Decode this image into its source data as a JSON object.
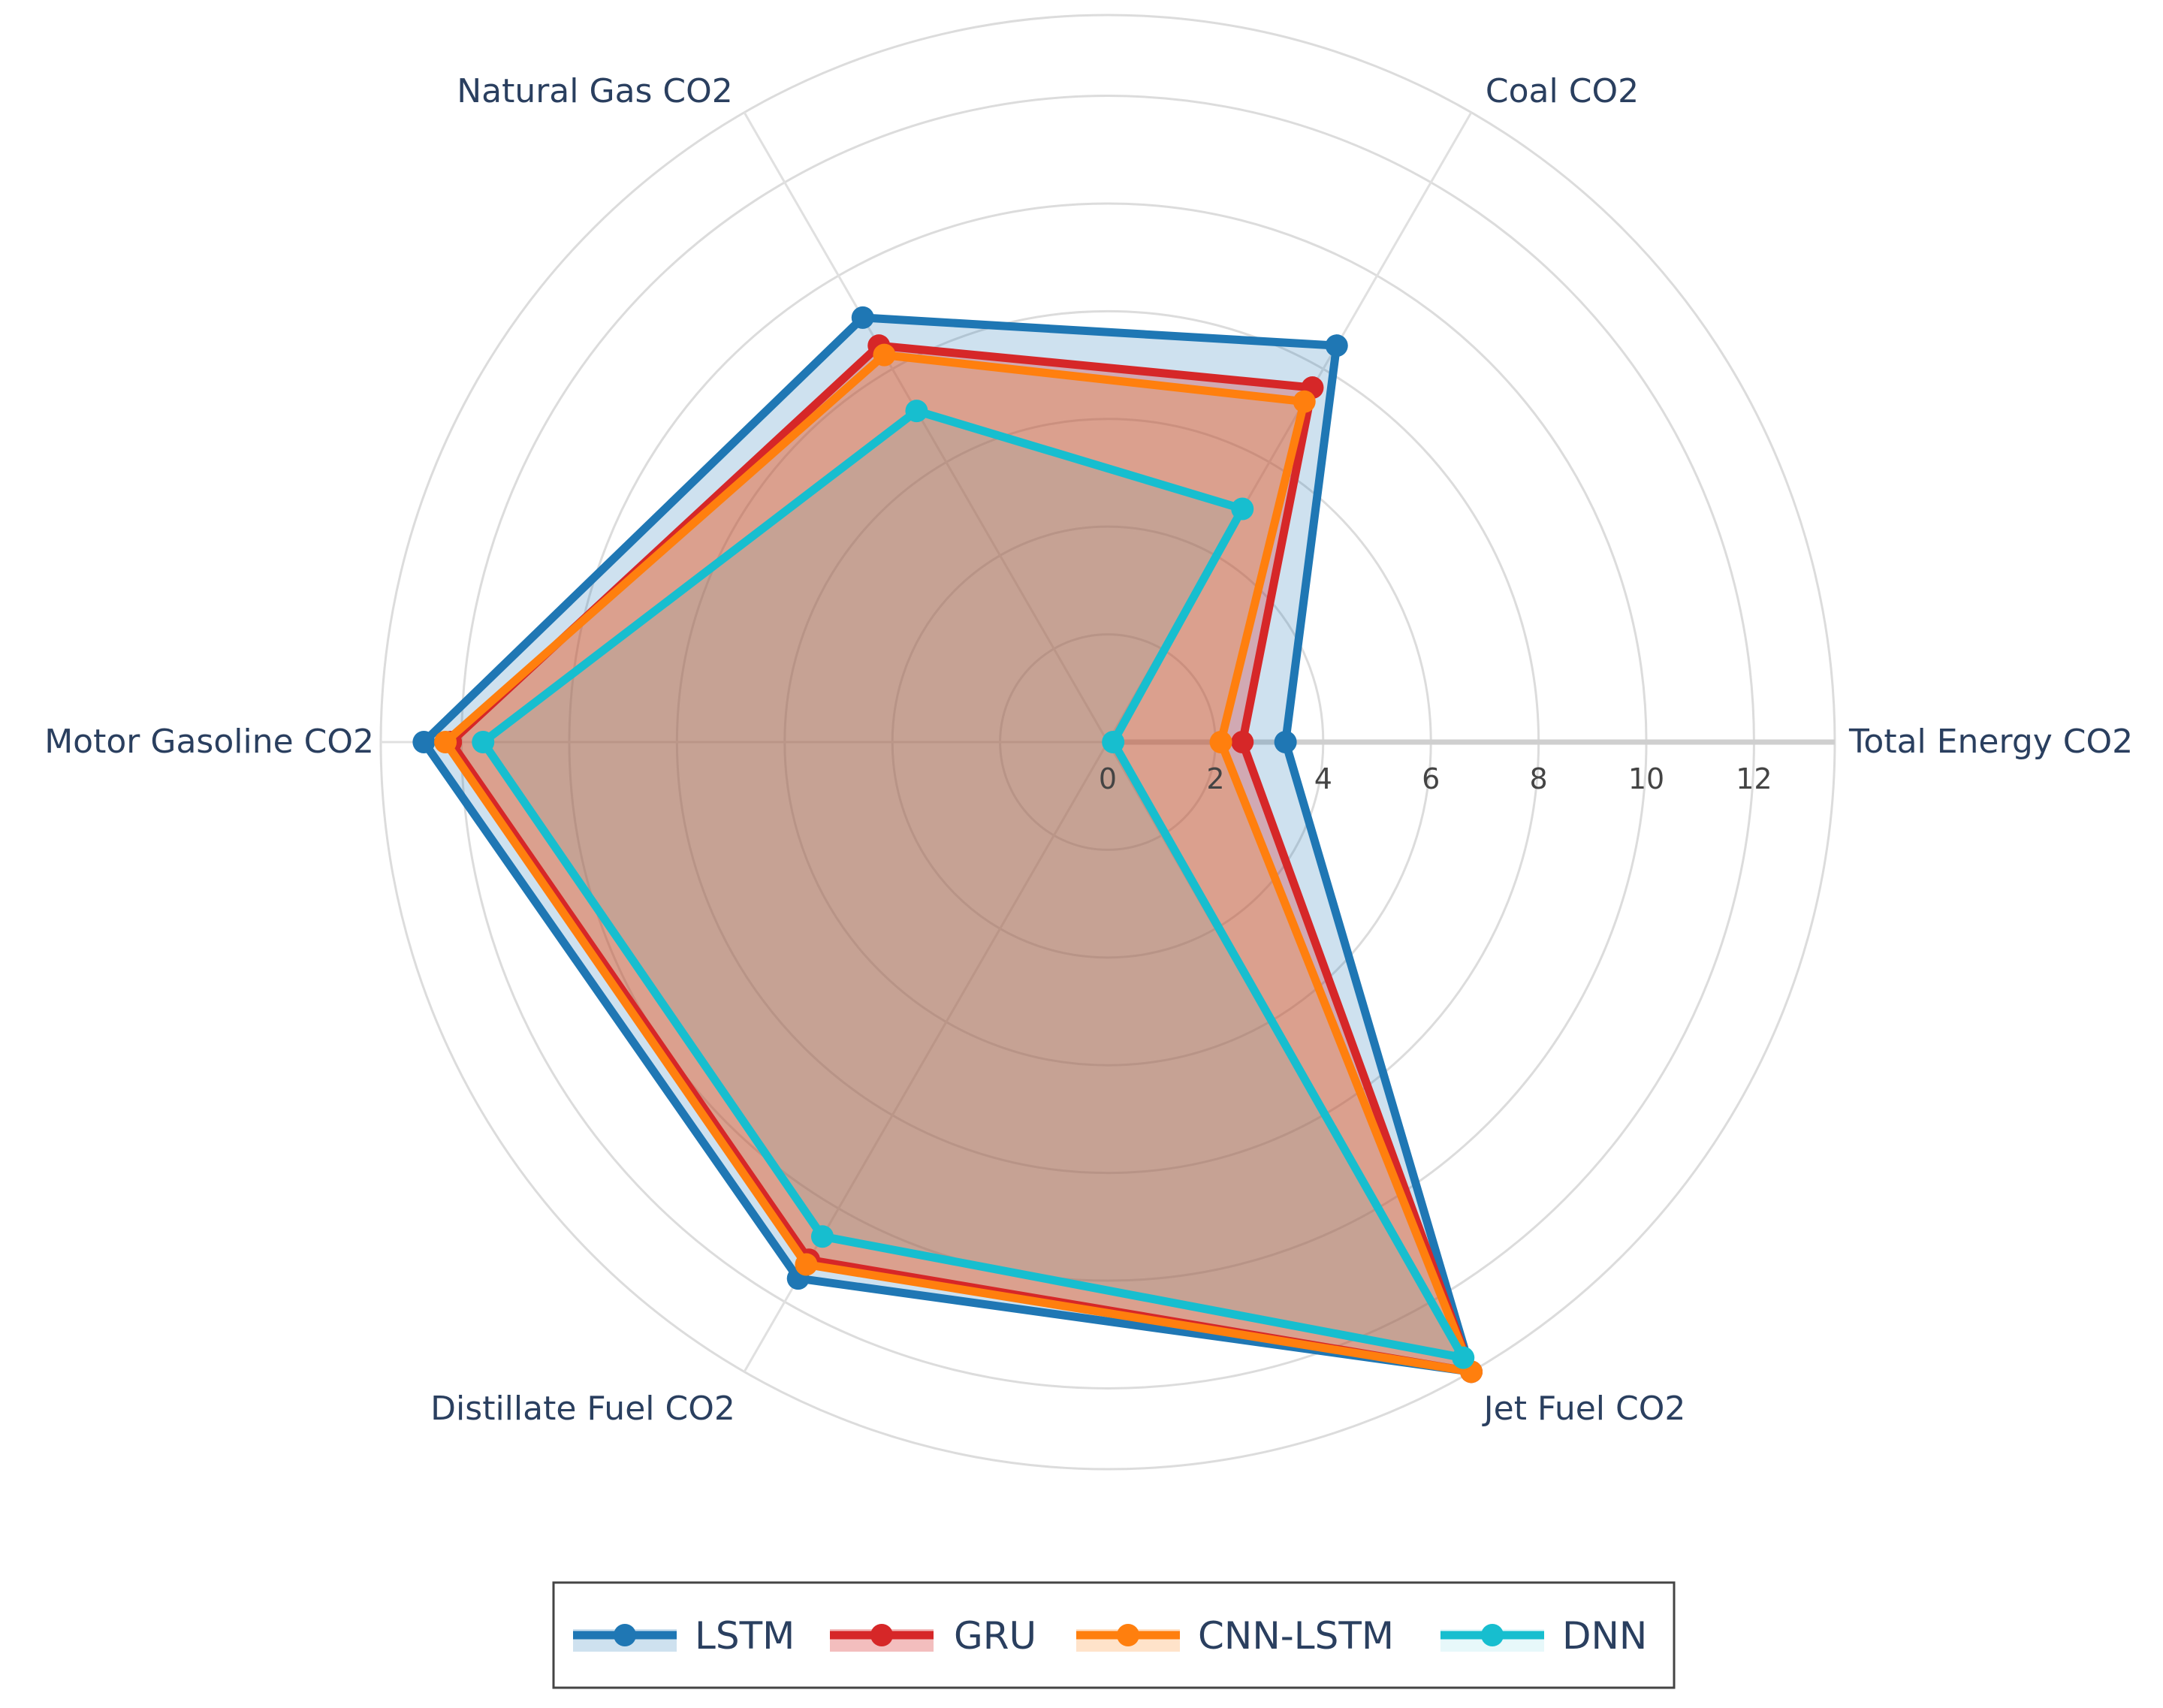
{
  "chart_data": {
    "type": "radar",
    "axes": [
      "Total Energy CO2",
      "Coal CO2",
      "Natural Gas CO2",
      "Motor Gasoline CO2",
      "Distillate Fuel CO2",
      "Jet Fuel CO2"
    ],
    "radial_range": [
      0,
      13.5
    ],
    "radial_ticks": [
      0,
      2,
      4,
      6,
      8,
      10,
      12
    ],
    "grid": true,
    "legend_position": "bottom-center",
    "series": [
      {
        "name": "LSTM",
        "color": "#1f77b4",
        "fill": "rgba(31,119,180,0.22)",
        "values": [
          3.3,
          8.5,
          9.1,
          12.7,
          11.5,
          13.5
        ]
      },
      {
        "name": "GRU",
        "color": "#d62728",
        "fill": "rgba(214,39,40,0.30)",
        "values": [
          2.5,
          7.6,
          8.5,
          12.2,
          11.1,
          13.5
        ]
      },
      {
        "name": "CNN-LSTM",
        "color": "#ff7f0e",
        "fill": "rgba(255,127,14,0.22)",
        "values": [
          2.1,
          7.3,
          8.3,
          12.3,
          11.2,
          13.5
        ]
      },
      {
        "name": "DNN",
        "color": "#17becf",
        "fill": "rgba(23,190,207,0.10)",
        "values": [
          0.1,
          5.0,
          7.1,
          11.6,
          10.6,
          13.2
        ]
      }
    ]
  }
}
